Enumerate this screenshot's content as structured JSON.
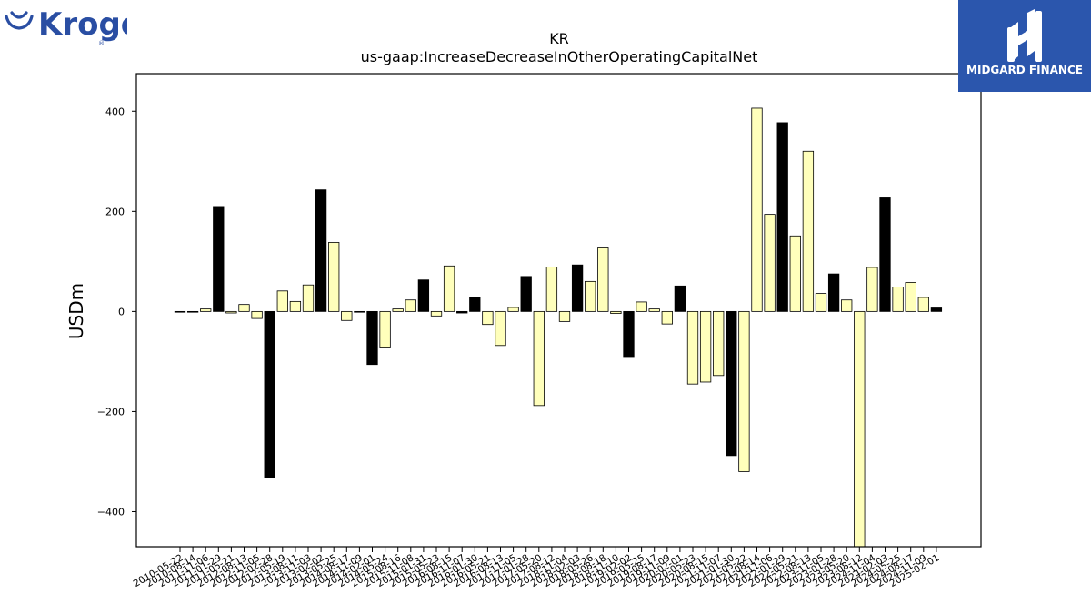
{
  "logos": {
    "brand": "Kroger",
    "partner": "MIDGARD FINANCE",
    "brand_color": "#2a4ea3",
    "partner_bg": "#2b56ad"
  },
  "chart_data": {
    "type": "bar",
    "title": "KR",
    "subtitle": "us-gaap:IncreaseDecreaseInOtherOperatingCapitalNet",
    "xlabel": "",
    "ylabel": "USDm",
    "ylim": [
      -470,
      475
    ],
    "yticks": [
      -400,
      -200,
      0,
      200,
      400
    ],
    "ytick_labels": [
      "−400",
      "−200",
      "0",
      "200",
      "400"
    ],
    "grid": false,
    "colors": {
      "highlight": "#000000",
      "normal": "#ffffbb",
      "edge": "#000000"
    },
    "categories": [
      "2010-05-22",
      "2010-08-14",
      "2011-11-06",
      "2011-01-29",
      "2011-05-21",
      "2012-08-13",
      "2012-11-05",
      "2012-02-28",
      "2012-05-19",
      "2013-08-11",
      "2013-11-03",
      "2013-02-02",
      "2013-05-25",
      "2014-08-17",
      "2014-11-09",
      "2014-02-01",
      "2014-05-24",
      "2015-08-16",
      "2015-11-08",
      "2015-01-31",
      "2015-05-23",
      "2016-08-15",
      "2016-11-07",
      "2016-01-30",
      "2016-05-21",
      "2016-08-13",
      "2017-11-05",
      "2017-01-28",
      "2017-05-20",
      "2017-08-12",
      "2018-11-04",
      "2018-02-03",
      "2018-05-26",
      "2018-08-18",
      "2018-11-10",
      "2019-02-02",
      "2019-05-25",
      "2019-08-17",
      "2019-11-09",
      "2020-02-01",
      "2020-05-23",
      "2020-08-15",
      "2021-11-07",
      "2021-01-30",
      "2021-05-22",
      "2021-08-14",
      "2021-11-06",
      "2022-01-29",
      "2022-05-21",
      "2022-08-13",
      "2023-11-05",
      "2023-01-28",
      "2023-05-20",
      "2023-08-12",
      "2024-11-04",
      "2024-02-03",
      "2024-05-25",
      "2024-08-17",
      "2024-11-09",
      "2025-02-01"
    ],
    "values": [
      -1,
      -1,
      5,
      208,
      -3,
      14,
      -14,
      -332,
      41,
      20,
      53,
      243,
      138,
      -18,
      -1,
      -106,
      -73,
      5,
      23,
      63,
      -9,
      91,
      -3,
      28,
      -26,
      -68,
      8,
      70,
      -188,
      89,
      -20,
      93,
      60,
      127,
      -4,
      -92,
      19,
      5,
      -25,
      51,
      -145,
      -141,
      -128,
      -288,
      -320,
      406,
      194,
      377,
      151,
      320,
      36,
      75,
      23,
      -470,
      88,
      227,
      49,
      58,
      28,
      7
    ],
    "highlight": [
      false,
      false,
      false,
      true,
      false,
      false,
      false,
      true,
      false,
      false,
      false,
      true,
      false,
      false,
      false,
      true,
      false,
      false,
      false,
      true,
      false,
      false,
      true,
      true,
      false,
      false,
      false,
      true,
      false,
      false,
      false,
      true,
      false,
      false,
      false,
      true,
      false,
      false,
      false,
      true,
      false,
      false,
      false,
      true,
      false,
      false,
      false,
      true,
      false,
      false,
      false,
      true,
      false,
      false,
      false,
      true,
      false,
      false,
      false,
      true
    ]
  }
}
